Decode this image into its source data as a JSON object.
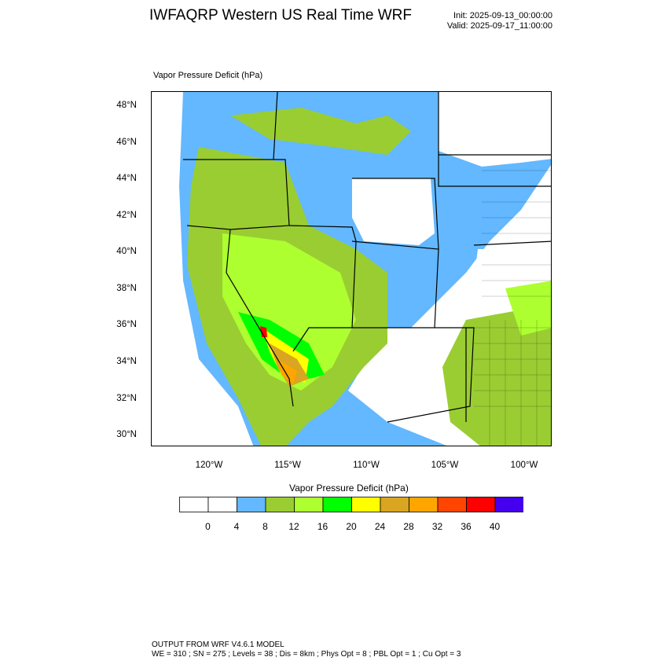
{
  "header": {
    "title": "IWFAQRP Western US Real Time WRF",
    "init": "Init: 2025-09-13_00:00:00",
    "valid": "Valid: 2025-09-17_11:00:00"
  },
  "map": {
    "panel_title": "Vapor Pressure Deficit   (hPa)",
    "lat_labels": [
      "48°N",
      "46°N",
      "44°N",
      "42°N",
      "40°N",
      "38°N",
      "36°N",
      "34°N",
      "32°N",
      "30°N"
    ],
    "lon_labels": [
      "120°W",
      "115°W",
      "110°W",
      "105°W",
      "100°W"
    ]
  },
  "colorbar": {
    "title": "Vapor Pressure Deficit  (hPa)",
    "tick_labels": [
      "0",
      "4",
      "8",
      "12",
      "16",
      "20",
      "24",
      "28",
      "32",
      "36",
      "40"
    ],
    "colors": [
      "#ffffff",
      "#ffffff",
      "#63b8ff",
      "#9acd32",
      "#adff2f",
      "#00ff00",
      "#ffff00",
      "#daa520",
      "#ffa500",
      "#ff4500",
      "#ff0000",
      "#4400ee"
    ]
  },
  "footer": {
    "line1": "OUTPUT FROM WRF V4.6.1 MODEL",
    "line2": "WE = 310 ; SN = 275 ; Levels = 38 ; Dis = 8km ; Phys Opt = 8 ; PBL Opt = 1 ; Cu Opt = 3"
  }
}
